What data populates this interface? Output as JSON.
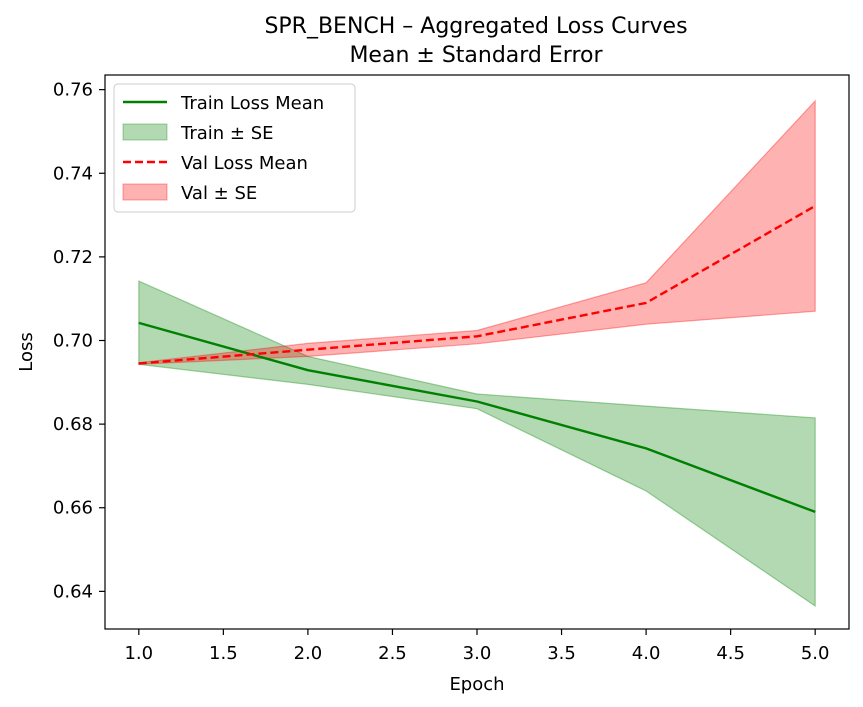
{
  "chart_data": {
    "type": "line",
    "title": "SPR_BENCH – Aggregated Loss Curves",
    "subtitle": "Mean ± Standard Error",
    "xlabel": "Epoch",
    "ylabel": "Loss",
    "xlim": [
      0.8,
      5.2
    ],
    "ylim": [
      0.631,
      0.7635
    ],
    "x_ticks": [
      "1.0",
      "1.5",
      "2.0",
      "2.5",
      "3.0",
      "3.5",
      "4.0",
      "4.5",
      "5.0"
    ],
    "y_ticks": [
      "0.64",
      "0.66",
      "0.68",
      "0.70",
      "0.72",
      "0.74",
      "0.76"
    ],
    "grid": false,
    "legend_position": "top-left",
    "x": [
      1,
      2,
      3,
      4,
      5
    ],
    "series": [
      {
        "name": "Train Loss Mean",
        "band_name": "Train ± SE",
        "mean": [
          0.7042,
          0.6929,
          0.6854,
          0.6742,
          0.659
        ],
        "lower": [
          0.6943,
          0.6895,
          0.6837,
          0.664,
          0.6365
        ],
        "upper": [
          0.7142,
          0.6962,
          0.6872,
          0.6843,
          0.6815
        ],
        "color": "#008000",
        "band_color": "#008000",
        "style": "solid"
      },
      {
        "name": "Val Loss Mean",
        "band_name": "Val ± SE",
        "mean": [
          0.6945,
          0.6978,
          0.701,
          0.709,
          0.7322
        ],
        "lower": [
          0.6943,
          0.6962,
          0.6992,
          0.7039,
          0.707
        ],
        "upper": [
          0.6947,
          0.6993,
          0.7024,
          0.7138,
          0.7573
        ],
        "color": "#ff0000",
        "band_color": "#ff0000",
        "style": "dashed"
      }
    ]
  }
}
